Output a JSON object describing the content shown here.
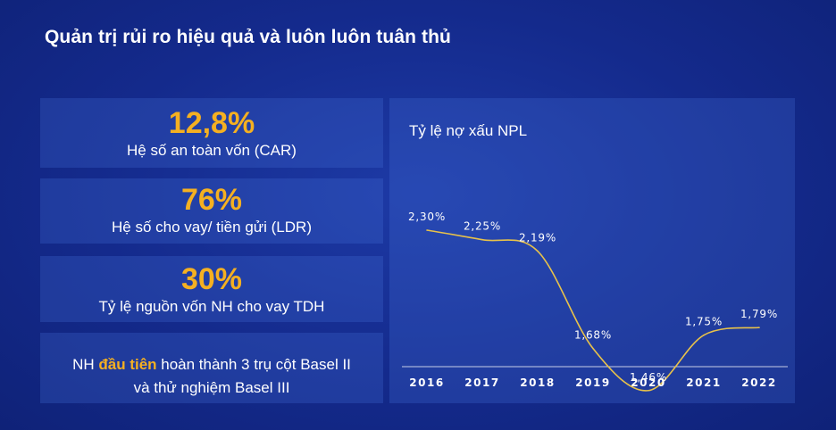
{
  "title": "Quản trị rủi ro hiệu quả và luôn luôn tuân thủ",
  "stats": [
    {
      "value": "12,8%",
      "label": "Hệ số an toàn vốn (CAR)"
    },
    {
      "value": "76%",
      "label": "Hệ số cho vay/ tiền gửi (LDR)"
    },
    {
      "value": "30%",
      "label": "Tỷ lệ nguồn vốn NH cho vay TDH"
    }
  ],
  "basel": {
    "prefix": "NH ",
    "highlight": "đầu tiên",
    "rest": " hoàn thành 3 trụ cột Basel II",
    "line2": "và thử nghiệm Basel III"
  },
  "colors": {
    "accent": "#f5b021",
    "line": "#e8c24a",
    "background": "#142a8c"
  },
  "chart_data": {
    "type": "line",
    "title": "Tỷ lệ nợ xấu NPL",
    "categories": [
      "2016",
      "2017",
      "2018",
      "2019",
      "2020",
      "2021",
      "2022"
    ],
    "values": [
      2.3,
      2.25,
      2.19,
      1.68,
      1.46,
      1.75,
      1.79
    ],
    "labels": [
      "2,30%",
      "2,25%",
      "2,19%",
      "1,68%",
      "1,46%",
      "1,75%",
      "1,79%"
    ],
    "grid": false,
    "legend": "none"
  }
}
